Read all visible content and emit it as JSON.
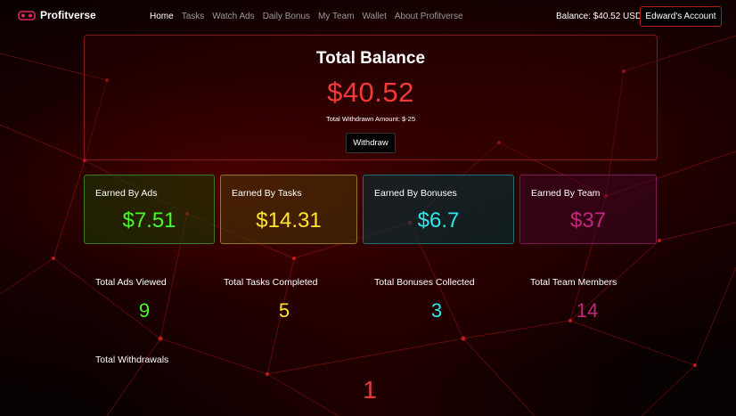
{
  "brand": {
    "name": "Profitverse",
    "logo_icon": "vr-headset-icon"
  },
  "nav": {
    "links": [
      {
        "label": "Home",
        "active": true
      },
      {
        "label": "Tasks",
        "active": false
      },
      {
        "label": "Watch Ads",
        "active": false
      },
      {
        "label": "Daily Bonus",
        "active": false
      },
      {
        "label": "My Team",
        "active": false
      },
      {
        "label": "Wallet",
        "active": false
      },
      {
        "label": "About Profitverse",
        "active": false
      }
    ],
    "balance_text": "Balance: $40.52 USD",
    "account_button": "Edward's Account"
  },
  "balance": {
    "title": "Total Balance",
    "amount": "$40.52",
    "withdrawn_text": "Total Withdrawn Amount: $-25",
    "withdraw_button": "Withdraw"
  },
  "earned": {
    "ads": {
      "label": "Earned By Ads",
      "value": "$7.51"
    },
    "tasks": {
      "label": "Earned By Tasks",
      "value": "$14.31"
    },
    "bonuses": {
      "label": "Earned By Bonuses",
      "value": "$6.7"
    },
    "team": {
      "label": "Earned By Team",
      "value": "$37"
    }
  },
  "stats": {
    "ads_viewed": {
      "label": "Total Ads Viewed",
      "value": "9"
    },
    "tasks_completed": {
      "label": "Total Tasks Completed",
      "value": "5"
    },
    "bonuses_collected": {
      "label": "Total Bonuses Collected",
      "value": "3"
    },
    "team_members": {
      "label": "Total Team Members",
      "value": "14"
    },
    "withdrawals": {
      "label": "Total Withdrawals",
      "value": "1"
    }
  },
  "colors": {
    "accent_red": "#f23a3a",
    "green": "#4af72c",
    "yellow": "#ffe52e",
    "cyan": "#2ee8ec",
    "magenta": "#c2267f"
  }
}
